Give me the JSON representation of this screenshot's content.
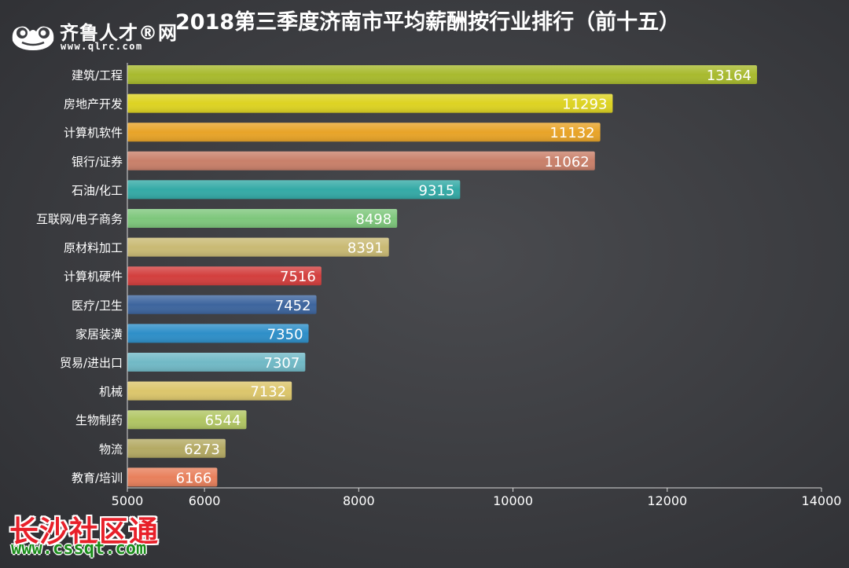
{
  "logo": {
    "name": "齐鲁人才®网",
    "url": "www.qlrc.com"
  },
  "watermark": {
    "name": "长沙社区通",
    "url": "www.cssqt.com"
  },
  "chart_data": {
    "type": "bar",
    "orientation": "horizontal",
    "title": "2018第三季度济南市平均薪酬按行业排行（前十五）",
    "categories": [
      "建筑/工程",
      "房地产开发",
      "计算机软件",
      "银行/证券",
      "石油/化工",
      "互联网/电子商务",
      "原材料加工",
      "计算机硬件",
      "医疗/卫生",
      "家居装潢",
      "贸易/进出口",
      "机械",
      "生物制药",
      "物流",
      "教育/培训"
    ],
    "values": [
      13164,
      11293,
      11132,
      11062,
      9315,
      8498,
      8391,
      7516,
      7452,
      7350,
      7307,
      7132,
      6544,
      6273,
      6166
    ],
    "colors": [
      "#a8ba2e",
      "#ddd322",
      "#e8a428",
      "#c9806a",
      "#34aaa6",
      "#7ec77c",
      "#c9ba74",
      "#d33f3e",
      "#3d659e",
      "#2e8fc8",
      "#71b9c6",
      "#dcc66c",
      "#b1c664",
      "#b4aa64",
      "#e8805c"
    ],
    "xlim": [
      5000,
      14000
    ],
    "xticks": [
      5000,
      6000,
      8000,
      10000,
      12000,
      14000
    ],
    "data_labels": true,
    "grid": false,
    "legend": "none"
  }
}
